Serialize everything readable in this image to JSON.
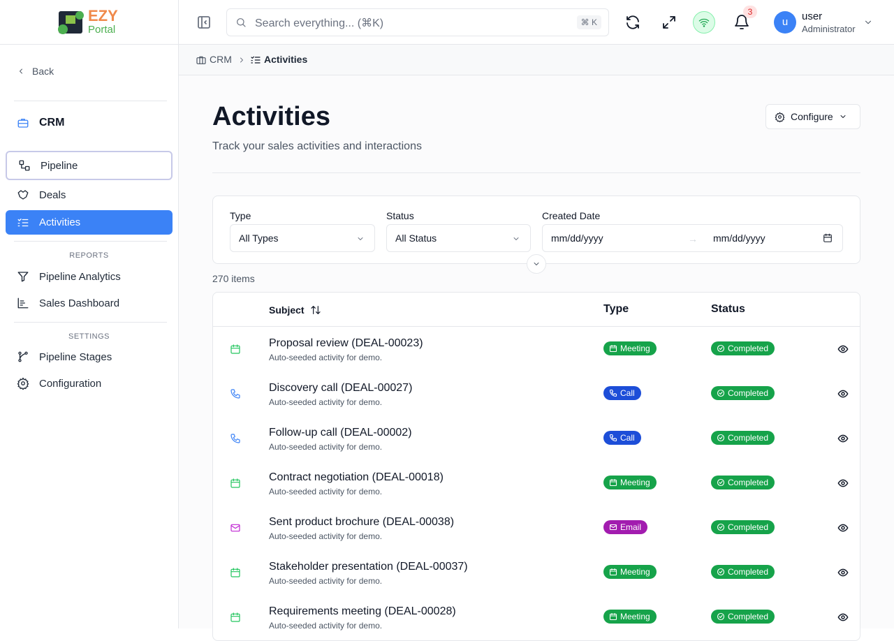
{
  "logo": {
    "top": "EZY",
    "bottom": "Portal"
  },
  "search": {
    "placeholder": "Search everything... (⌘K)",
    "shortcut": "⌘ K"
  },
  "notifications": {
    "count": "3"
  },
  "user": {
    "avatar": "u",
    "name": "user",
    "role": "Administrator"
  },
  "sidebar": {
    "back": "Back",
    "section": "CRM",
    "items": [
      "Pipeline",
      "Deals",
      "Activities"
    ],
    "reports_heading": "REPORTS",
    "reports": [
      "Pipeline Analytics",
      "Sales Dashboard"
    ],
    "settings_heading": "SETTINGS",
    "settings": [
      "Pipeline Stages",
      "Configuration"
    ]
  },
  "breadcrumb": [
    "CRM",
    "Activities"
  ],
  "page": {
    "title": "Activities",
    "subtitle": "Track your sales activities and interactions",
    "configure": "Configure"
  },
  "filters": {
    "type": {
      "label": "Type",
      "value": "All Types"
    },
    "status": {
      "label": "Status",
      "value": "All Status"
    },
    "date": {
      "label": "Created Date",
      "from": "mm/dd/yyyy",
      "to": "mm/dd/yyyy"
    }
  },
  "table": {
    "count": "270 items",
    "columns": [
      "Subject",
      "Type",
      "Status"
    ],
    "rows": [
      {
        "subject": "Proposal review (DEAL-00023)",
        "note": "Auto-seeded activity for demo.",
        "type": "Meeting",
        "color": "#16a34a",
        "status": "Completed"
      },
      {
        "subject": "Discovery call (DEAL-00027)",
        "note": "Auto-seeded activity for demo.",
        "type": "Call",
        "color": "#1d4ed8",
        "status": "Completed"
      },
      {
        "subject": "Follow-up call (DEAL-00002)",
        "note": "Auto-seeded activity for demo.",
        "type": "Call",
        "color": "#1d4ed8",
        "status": "Completed"
      },
      {
        "subject": "Contract negotiation (DEAL-00018)",
        "note": "Auto-seeded activity for demo.",
        "type": "Meeting",
        "color": "#16a34a",
        "status": "Completed"
      },
      {
        "subject": "Sent product brochure (DEAL-00038)",
        "note": "Auto-seeded activity for demo.",
        "type": "Email",
        "color": "#a21caf",
        "status": "Completed"
      },
      {
        "subject": "Stakeholder presentation (DEAL-00037)",
        "note": "Auto-seeded activity for demo.",
        "type": "Meeting",
        "color": "#16a34a",
        "status": "Completed"
      },
      {
        "subject": "Requirements meeting (DEAL-00028)",
        "note": "Auto-seeded activity for demo.",
        "type": "Meeting",
        "color": "#16a34a",
        "status": "Completed"
      }
    ]
  }
}
